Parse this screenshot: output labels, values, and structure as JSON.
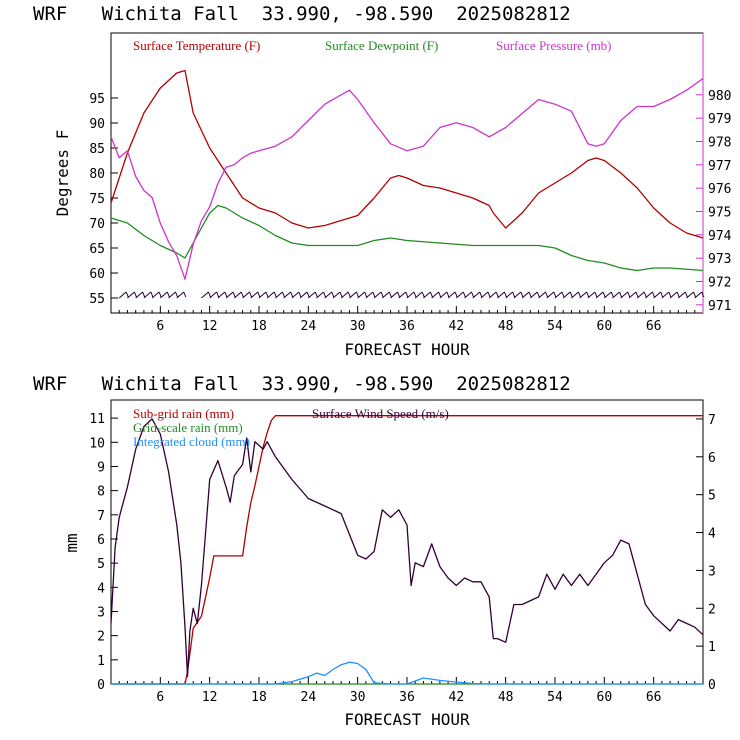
{
  "chart_data": [
    {
      "type": "line",
      "title": "WRF   Wichita Fall  33.990, -98.590  2025082812",
      "xlabel": "FORECAST HOUR",
      "ylabel": "Degrees F",
      "xlim": [
        0,
        72
      ],
      "ylim": [
        52,
        108
      ],
      "y2lim": [
        970.65,
        982.65
      ],
      "xticks": [
        6,
        12,
        18,
        24,
        30,
        36,
        42,
        48,
        54,
        60,
        66
      ],
      "yticks": [
        55,
        60,
        65,
        70,
        75,
        80,
        85,
        90,
        95
      ],
      "y2ticks": [
        971,
        972,
        973,
        974,
        975,
        976,
        977,
        978,
        979,
        980
      ],
      "legend_placement": "top",
      "colors": {
        "temperature": "#b30000",
        "dewpoint": "#228b22",
        "pressure": "#cc33cc",
        "wind_barbs": "#1a0033"
      },
      "series": [
        {
          "name": "Surface Temperature (F)",
          "axis": "left",
          "color": "#b30000",
          "x": [
            0,
            2,
            4,
            6,
            8,
            9,
            10,
            12,
            14,
            16,
            18,
            20,
            22,
            24,
            26,
            28,
            30,
            32,
            34,
            35,
            36,
            38,
            40,
            42,
            44,
            46,
            46.5,
            48,
            50,
            52,
            54,
            56,
            58,
            59,
            60,
            62,
            64,
            66,
            68,
            70,
            72
          ],
          "y": [
            74,
            84,
            92,
            97,
            100,
            100.5,
            92,
            85,
            80,
            75,
            73,
            72,
            70,
            69,
            69.5,
            70.5,
            71.5,
            75,
            79,
            79.5,
            79,
            77.5,
            77,
            76,
            75,
            73.5,
            72,
            69,
            72,
            76,
            78,
            80,
            82.5,
            83,
            82.5,
            80,
            77,
            73,
            70,
            68,
            67
          ]
        },
        {
          "name": "Surface Dewpoint (F)",
          "axis": "left",
          "color": "#228b22",
          "x": [
            0,
            2,
            4,
            6,
            8,
            9,
            10,
            11,
            12,
            13,
            14,
            16,
            18,
            20,
            22,
            24,
            26,
            28,
            30,
            32,
            34,
            36,
            40,
            44,
            48,
            52,
            54,
            56,
            58,
            60,
            62,
            64,
            66,
            68,
            72
          ],
          "y": [
            71,
            70,
            67.5,
            65.5,
            64,
            63,
            66,
            69,
            72,
            73.5,
            73,
            71,
            69.5,
            67.5,
            66,
            65.5,
            65.5,
            65.5,
            65.5,
            66.5,
            67,
            66.5,
            66,
            65.5,
            65.5,
            65.5,
            65,
            63.5,
            62.5,
            62,
            61,
            60.5,
            61,
            61,
            60.5
          ]
        },
        {
          "name": "Surface Pressure (mb)",
          "axis": "right",
          "color": "#cc33cc",
          "x": [
            0,
            1,
            2,
            3,
            4,
            5,
            6,
            7,
            8,
            9,
            10,
            11,
            12,
            13,
            14,
            15,
            16,
            17,
            18,
            20,
            22,
            24,
            26,
            28,
            29,
            30,
            32,
            34,
            36,
            38,
            40,
            42,
            44,
            46,
            48,
            50,
            52,
            54,
            56,
            58,
            59,
            60,
            62,
            64,
            66,
            68,
            70,
            72
          ],
          "y": [
            978.2,
            977.3,
            977.6,
            976.5,
            975.9,
            975.6,
            974.5,
            973.7,
            973.1,
            972.1,
            973.6,
            974.6,
            975.2,
            976.2,
            976.9,
            977.0,
            977.3,
            977.5,
            977.6,
            977.8,
            978.2,
            978.9,
            979.6,
            980.0,
            980.2,
            979.8,
            978.8,
            977.9,
            977.6,
            977.8,
            978.6,
            978.8,
            978.6,
            978.2,
            978.6,
            979.2,
            979.8,
            979.6,
            979.3,
            977.9,
            977.8,
            977.9,
            978.9,
            979.5,
            979.5,
            979.8,
            980.2,
            980.7
          ]
        }
      ],
      "wind_barbs": {
        "y_level": 55,
        "x": [
          1,
          2,
          3,
          4,
          5,
          6,
          7,
          8,
          11,
          12,
          13,
          14,
          15,
          16,
          17,
          18,
          19,
          20,
          21,
          22,
          23,
          24,
          25,
          26,
          27,
          28,
          29,
          30,
          31,
          32,
          33,
          34,
          35,
          36,
          37,
          38,
          39,
          40,
          41,
          42,
          43,
          44,
          45,
          46,
          47,
          48,
          49,
          50,
          51,
          52,
          53,
          54,
          55,
          56,
          57,
          58,
          59,
          60,
          61,
          62,
          63,
          64,
          65,
          66,
          67,
          68,
          69,
          70,
          71
        ]
      }
    },
    {
      "type": "line",
      "title": "WRF   Wichita Fall  33.990, -98.590  2025082812",
      "xlabel": "FORECAST HOUR",
      "ylabel": "mm",
      "xlim": [
        0,
        72
      ],
      "ylim": [
        0,
        11.75
      ],
      "y2lim": [
        0,
        7.5
      ],
      "xticks": [
        6,
        12,
        18,
        24,
        30,
        36,
        42,
        48,
        54,
        60,
        66
      ],
      "yticks": [
        0,
        1,
        2,
        3,
        4,
        5,
        6,
        7,
        8,
        9,
        10,
        11
      ],
      "y2ticks": [
        0,
        1,
        2,
        3,
        4,
        5,
        6,
        7
      ],
      "legend_placement": "top-left",
      "colors": {
        "subgrid": "#b30000",
        "gridscale": "#228b22",
        "cloud": "#1e90ff",
        "wind": "#330033"
      },
      "series": [
        {
          "name": "Sub-grid rain (mm)",
          "axis": "left",
          "color": "#b30000",
          "x": [
            0,
            9,
            9.3,
            10,
            11,
            11.5,
            12,
            12.5,
            13,
            15,
            16,
            16.5,
            17,
            17.5,
            18,
            18.5,
            19,
            19.5,
            20,
            21,
            72
          ],
          "y": [
            0,
            0,
            0.5,
            2.3,
            2.8,
            3.6,
            4.4,
            5.3,
            5.3,
            5.3,
            5.3,
            6.5,
            7.5,
            8.2,
            9.0,
            9.8,
            10.4,
            10.9,
            11.1,
            11.1,
            11.1
          ]
        },
        {
          "name": "Grid-scale rain (mm)",
          "axis": "left",
          "color": "#228b22",
          "x": [
            0,
            72
          ],
          "y": [
            0,
            0
          ]
        },
        {
          "name": "Integrated cloud (mm)",
          "axis": "left",
          "color": "#1e90ff",
          "x": [
            0,
            20,
            22,
            24,
            25,
            26,
            27,
            28,
            29,
            30,
            31,
            32,
            34,
            36,
            38,
            40,
            42,
            44,
            46,
            72
          ],
          "y": [
            0,
            0,
            0.1,
            0.3,
            0.45,
            0.35,
            0.6,
            0.8,
            0.9,
            0.85,
            0.6,
            0.05,
            0,
            0,
            0.25,
            0.15,
            0.08,
            0.02,
            0,
            0
          ]
        },
        {
          "name": "Surface Wind Speed (m/s)",
          "axis": "right",
          "color": "#330033",
          "x": [
            0,
            0.5,
            1,
            2,
            3,
            4,
            5,
            6,
            7,
            8,
            8.5,
            9,
            9.3,
            9.6,
            10,
            10.5,
            11,
            11.5,
            12,
            13,
            14,
            14.5,
            15,
            16,
            16.5,
            17,
            17.5,
            18,
            18.5,
            19,
            20,
            22,
            24,
            26,
            28,
            30,
            31,
            32,
            33,
            34,
            35,
            36,
            36.5,
            37,
            38,
            39,
            40,
            41,
            42,
            43,
            44,
            45,
            46,
            46.5,
            47,
            48,
            49,
            50,
            52,
            53,
            54,
            55,
            56,
            57,
            58,
            59,
            60,
            61,
            62,
            63,
            64,
            65,
            66,
            67,
            68,
            69,
            70,
            71,
            72
          ],
          "y": [
            1.6,
            3.6,
            4.4,
            5.2,
            6.2,
            6.8,
            7.0,
            6.6,
            5.6,
            4.2,
            3.2,
            1.5,
            0.2,
            1.4,
            2.0,
            1.6,
            2.6,
            4.0,
            5.4,
            5.9,
            5.2,
            4.8,
            5.5,
            5.8,
            6.5,
            5.6,
            6.4,
            6.3,
            6.2,
            6.4,
            6.0,
            5.4,
            4.9,
            4.7,
            4.5,
            3.4,
            3.3,
            3.5,
            4.6,
            4.4,
            4.6,
            4.2,
            2.6,
            3.2,
            3.1,
            3.7,
            3.1,
            2.8,
            2.6,
            2.8,
            2.7,
            2.7,
            2.3,
            1.2,
            1.2,
            1.1,
            2.1,
            2.1,
            2.3,
            2.9,
            2.5,
            2.9,
            2.6,
            2.9,
            2.6,
            2.9,
            3.2,
            3.4,
            3.8,
            3.7,
            2.9,
            2.1,
            1.8,
            1.6,
            1.4,
            1.7,
            1.6,
            1.5,
            1.3
          ]
        }
      ]
    }
  ]
}
